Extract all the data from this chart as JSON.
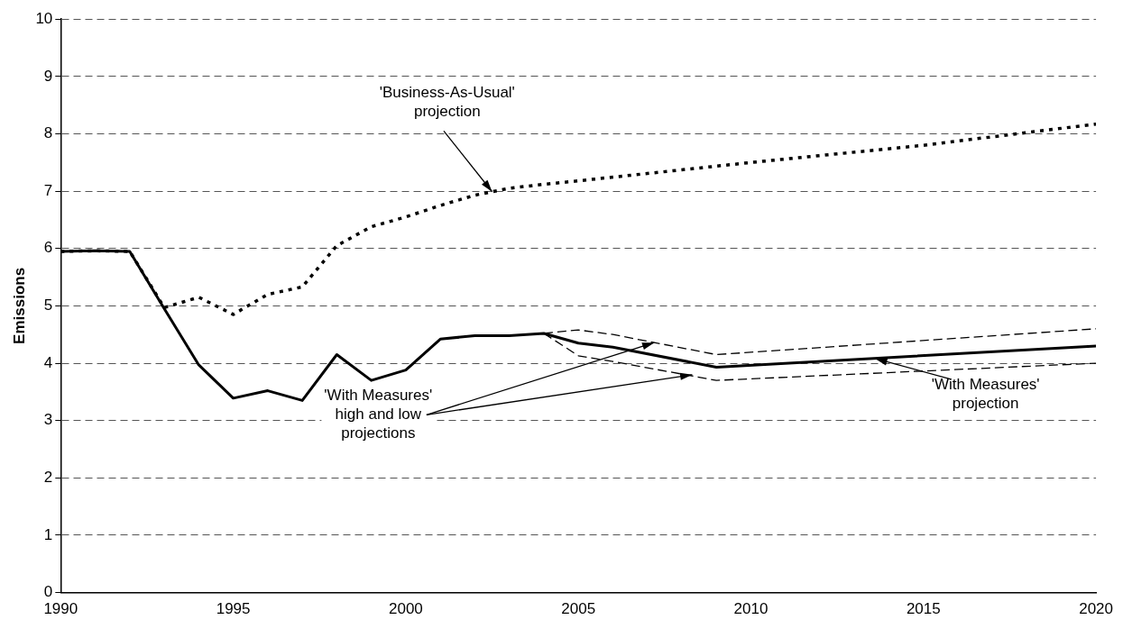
{
  "chart_data": {
    "type": "line",
    "ylabel": "Emissions",
    "xlim": [
      1990,
      2020
    ],
    "xticks": [
      1990,
      1995,
      2000,
      2005,
      2010,
      2015,
      2020
    ],
    "ylim": [
      0,
      10
    ],
    "yticks": [
      0,
      1,
      2,
      3,
      4,
      5,
      6,
      7,
      8,
      9,
      10
    ],
    "grid": "y",
    "legend": false,
    "marker": "none",
    "series": [
      {
        "color": "#000000",
        "line_style": "dotted",
        "x": [
          1990,
          1991,
          1992,
          1993,
          1994,
          1995,
          1996,
          1997,
          1998,
          1999,
          2000,
          2001,
          2002,
          2003,
          2004,
          2005,
          2010,
          2015,
          2020
        ],
        "values": [
          5.95,
          5.96,
          5.95,
          4.97,
          5.15,
          4.85,
          5.2,
          5.33,
          6.05,
          6.38,
          6.55,
          6.75,
          6.93,
          7.05,
          7.12,
          7.18,
          7.5,
          7.8,
          8.17
        ]
      },
      {
        "color": "#000000",
        "line_style": "dashed",
        "x": [
          2004,
          2005,
          2006,
          2009,
          2020
        ],
        "values": [
          4.52,
          4.58,
          4.5,
          4.15,
          4.6
        ]
      },
      {
        "color": "#000000",
        "line_style": "dashed",
        "x": [
          2004,
          2005,
          2006,
          2009,
          2020
        ],
        "values": [
          4.52,
          4.13,
          4.03,
          3.7,
          4.0
        ]
      },
      {
        "color": "#000000",
        "line_style": "solid",
        "x": [
          1990,
          1991,
          1992,
          1993,
          1994,
          1995,
          1996,
          1997,
          1998,
          1999,
          2000,
          2001,
          2002,
          2003,
          2004,
          2005,
          2006,
          2009,
          2020
        ],
        "values": [
          5.95,
          5.96,
          5.95,
          4.95,
          3.97,
          3.39,
          3.52,
          3.35,
          4.15,
          3.7,
          3.88,
          4.42,
          4.48,
          4.48,
          4.52,
          4.35,
          4.28,
          3.93,
          4.3
        ]
      }
    ],
    "annotations": [
      {
        "text": "'Business-As-Usual'\nprojection",
        "x": 2002.5,
        "y": 6.99
      },
      {
        "text": "'With Measures'\nhigh and low\nprojections",
        "x": 2007.2,
        "y": 4.36
      },
      {
        "text": "'With Measures'\nprojection",
        "x": 2013.6,
        "y": 4.08
      }
    ]
  }
}
